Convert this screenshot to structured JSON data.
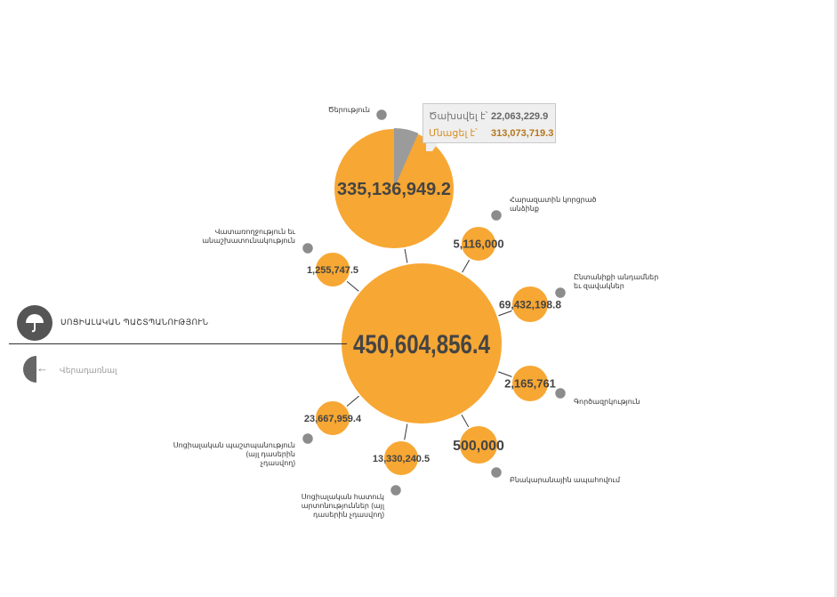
{
  "section": {
    "title": "ՍՈՑԻԱԼԱԿԱՆ ՊԱՇՏՊԱՆՈՒԹՅՈՒՆ",
    "icon": "umbrella-icon"
  },
  "back": {
    "label": "Վերադառնալ",
    "icon": "arrow-left-icon"
  },
  "tooltip": {
    "spent_label": "Ծախսվել է՝",
    "spent_value": "22,063,229.9",
    "left_label": "Մնացել է՝",
    "left_value": "313,073,719.3"
  },
  "colors": {
    "bubble": "#f7a733",
    "bubble_border": "#ffffff",
    "marker": "#8c8c8c",
    "spent_slice": "#9b9b9b",
    "text": "#444444"
  },
  "chart_data": {
    "type": "bubble",
    "center": {
      "label": "450,604,856.4",
      "value": 450604856.4
    },
    "children": [
      {
        "id": "old-age",
        "label": "Ծերություն",
        "value_text": "335,136,949.2",
        "value": 335136949.2,
        "spent": 22063229.9,
        "remaining": 313073719.3,
        "label_lines": [
          "Ծերություն"
        ]
      },
      {
        "id": "unprotected-housing",
        "label": "Հարազատին կորցրած անձինք",
        "value_text": "5,116,000",
        "value": 5116000,
        "label_lines": [
          "Հարազատին կորցրած",
          "անձինք"
        ]
      },
      {
        "id": "family",
        "label": "Ընտանիքի անդամներ եւ զավակներ",
        "value_text": "69,432,198.8",
        "value": 69432198.8,
        "label_lines": [
          "Ընտանիքի անդամներ",
          "եւ զավակներ"
        ]
      },
      {
        "id": "unemployment",
        "label": "Գործազրկություն",
        "value_text": "2,165,761",
        "value": 2165761,
        "label_lines": [
          "Գործազրկություն"
        ]
      },
      {
        "id": "housing",
        "label": "Բնակարանային ապահովում",
        "value_text": "500,000",
        "value": 500000,
        "label_lines": [
          "Բնակարանային ապահովում"
        ]
      },
      {
        "id": "social-rd",
        "label": "Սոցիալական հատուկ արտոնություններ (այլ դասերին չդասվող)",
        "value_text": "13,330,240.5",
        "value": 13330240.5,
        "label_lines": [
          "Սոցիալական հատուկ",
          "արտոնություններ (այլ",
          "դասերին չդասվող)"
        ]
      },
      {
        "id": "social-other",
        "label": "Սոցիալական պաշտպանություն (այլ դասերին չդասվող)",
        "value_text": "23,667,959.4",
        "value": 23667959.4,
        "label_lines": [
          "Սոցիալական պաշտպանություն",
          "(այլ դասերին",
          "չդասվող)"
        ]
      },
      {
        "id": "disability",
        "label": "Վատառողջություն եւ անաշխատունակություն",
        "value_text": "1,255,747.5",
        "value": 1255747.5,
        "label_lines": [
          "Վատառողջություն եւ",
          "անաշխատունակություն"
        ]
      }
    ]
  }
}
